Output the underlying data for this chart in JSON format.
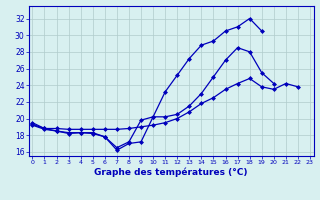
{
  "title": "Graphe des températures (°C)",
  "x": [
    0,
    1,
    2,
    3,
    4,
    5,
    6,
    7,
    8,
    9,
    10,
    11,
    12,
    13,
    14,
    15,
    16,
    17,
    18,
    19,
    20,
    21,
    22,
    23
  ],
  "line1": [
    19.5,
    18.8,
    18.5,
    18.3,
    18.3,
    18.2,
    17.8,
    16.2,
    17.0,
    17.2,
    20.2,
    23.2,
    25.2,
    27.2,
    28.8,
    29.3,
    30.5,
    31.0,
    32.0,
    30.5,
    null,
    null,
    null,
    null
  ],
  "line2": [
    19.2,
    18.7,
    18.5,
    18.2,
    18.3,
    18.3,
    17.8,
    16.5,
    17.2,
    19.8,
    20.2,
    20.2,
    20.5,
    21.5,
    23.0,
    25.0,
    27.0,
    28.5,
    28.0,
    25.5,
    24.2,
    null,
    null,
    null
  ],
  "line3": [
    19.3,
    18.8,
    18.8,
    18.7,
    18.7,
    18.7,
    18.7,
    18.7,
    18.8,
    19.0,
    19.2,
    19.5,
    20.0,
    20.8,
    21.8,
    22.5,
    23.5,
    24.2,
    24.8,
    23.8,
    23.5,
    24.2,
    23.8,
    null
  ],
  "ylim": [
    15.5,
    33.5
  ],
  "xlim": [
    -0.3,
    23.3
  ],
  "yticks": [
    16,
    18,
    20,
    22,
    24,
    26,
    28,
    30,
    32
  ],
  "xticks": [
    0,
    1,
    2,
    3,
    4,
    5,
    6,
    7,
    8,
    9,
    10,
    11,
    12,
    13,
    14,
    15,
    16,
    17,
    18,
    19,
    20,
    21,
    22,
    23
  ],
  "line_color": "#0000bb",
  "marker": "D",
  "markersize": 2.0,
  "bg_color": "#d8f0f0",
  "grid_color": "#b0cccc",
  "axis_label_color": "#0000bb",
  "tick_label_color": "#0000bb"
}
